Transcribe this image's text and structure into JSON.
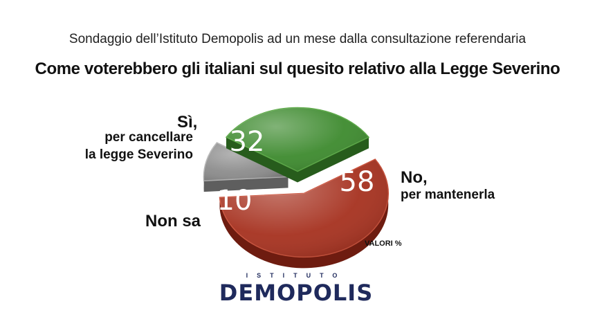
{
  "header": {
    "subtitle": "Sondaggio dell’Istituto Demopolis ad un mese dalla consultazione referendaria",
    "title": "Come voterebbero gli italiani sul quesito relativo alla Legge Severino"
  },
  "chart_data": {
    "type": "pie",
    "unit_note": "VALORI %",
    "slices": [
      {
        "value": 58,
        "label_line1": "No,",
        "label_line2": "per mantenerla",
        "label_line3": "",
        "color": "#a6311f",
        "color_dark": "#6e1c10",
        "color_light": "#c8503a"
      },
      {
        "value": 10,
        "label_line1": "Non sa",
        "label_line2": "",
        "label_line3": "",
        "color": "#8c8c8c",
        "color_dark": "#5e5e5e",
        "color_light": "#b5b5b5"
      },
      {
        "value": 32,
        "label_line1": "Sì,",
        "label_line2": "per cancellare",
        "label_line3": "la legge Severino",
        "color": "#3d8a2e",
        "color_dark": "#275c1c",
        "color_light": "#5aa845"
      }
    ]
  },
  "logo": {
    "top_text": "ISTITUTO",
    "main_text": "DEMOPOLIS"
  }
}
